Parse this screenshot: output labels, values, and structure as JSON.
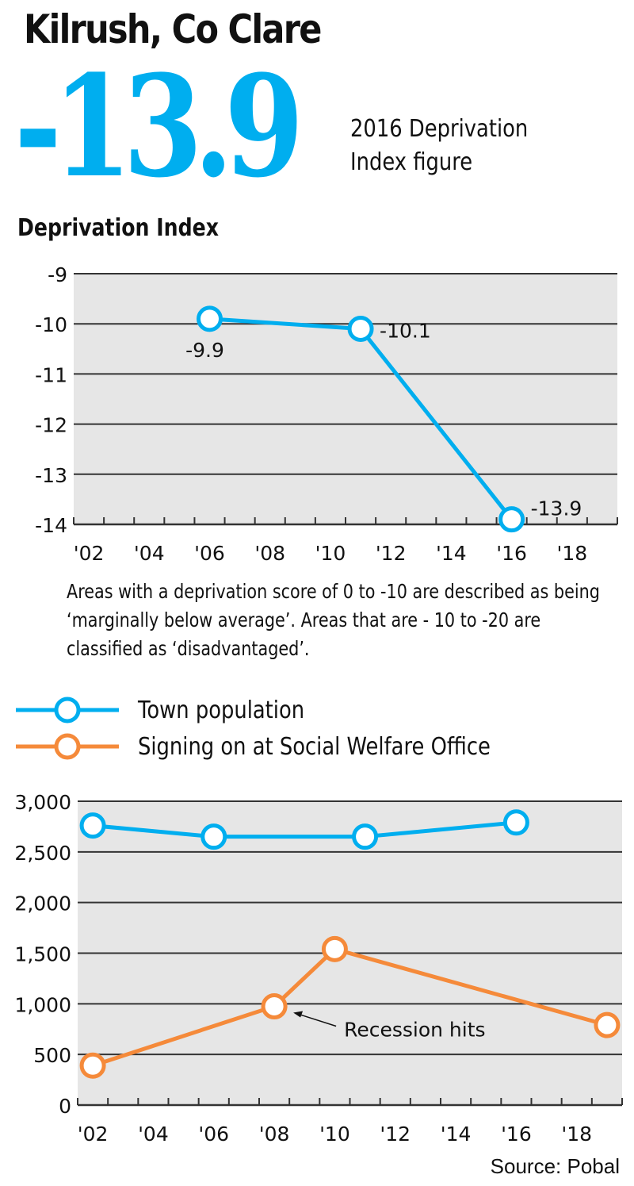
{
  "header": {
    "title": "Kilrush, Co Clare",
    "big_number": "-13.9",
    "big_number_caption_line1": "2016 Deprivation",
    "big_number_caption_line2": "Index figure"
  },
  "colors": {
    "accent_blue": "#00AEEF",
    "accent_orange": "#F58A3A",
    "plot_background": "#E6E6E6",
    "gridline": "#333333"
  },
  "chart_data": [
    {
      "type": "line",
      "title": "Deprivation Index",
      "xlabel": "",
      "ylabel": "",
      "x_range": [
        2002,
        2019
      ],
      "ylim": [
        -14,
        -9
      ],
      "y_ticks": [
        -9,
        -10,
        -11,
        -12,
        -13,
        -14
      ],
      "y_tick_labels": [
        "-9",
        "-10",
        "-11",
        "-12",
        "-13",
        "-14"
      ],
      "x_tick_labels": [
        "'02",
        "'04",
        "'06",
        "'08",
        "'10",
        "'12",
        "'14",
        "'16",
        "'18"
      ],
      "x_tick_years": [
        2002,
        2004,
        2006,
        2008,
        2010,
        2012,
        2014,
        2016,
        2018
      ],
      "grid": true,
      "series": [
        {
          "name": "Deprivation Index",
          "color": "#00AEEF",
          "x": [
            2006,
            2011,
            2016
          ],
          "values": [
            -9.9,
            -10.1,
            -13.9
          ],
          "data_labels": [
            "-9.9",
            "-10.1",
            "-13.9"
          ]
        }
      ],
      "note": "Areas with a deprivation score of 0 to -10 are described as being ‘marginally below average’. Areas that are - 10 to -20 are classified as ‘disadvantaged’."
    },
    {
      "type": "line",
      "title": "",
      "xlabel": "",
      "ylabel": "",
      "x_range": [
        2002,
        2019
      ],
      "ylim": [
        0,
        3000
      ],
      "y_ticks": [
        3000,
        2500,
        2000,
        1500,
        1000,
        500,
        0
      ],
      "y_tick_labels": [
        "3,000",
        "2,500",
        "2,000",
        "1,500",
        "1,000",
        "500",
        "0"
      ],
      "x_tick_labels": [
        "'02",
        "'04",
        "'06",
        "'08",
        "'10",
        "'12",
        "'14",
        "'16",
        "'18"
      ],
      "x_tick_years": [
        2002,
        2004,
        2006,
        2008,
        2010,
        2012,
        2014,
        2016,
        2018
      ],
      "grid": true,
      "legend_position": "top-left",
      "series": [
        {
          "name": "Town population",
          "color": "#00AEEF",
          "x": [
            2002,
            2006,
            2011,
            2016
          ],
          "values": [
            2760,
            2650,
            2650,
            2790
          ]
        },
        {
          "name": "Signing on at Social Welfare Office",
          "color": "#F58A3A",
          "x": [
            2002,
            2008,
            2010,
            2019
          ],
          "values": [
            390,
            975,
            1540,
            790
          ]
        }
      ],
      "annotations": [
        {
          "text": "Recession hits",
          "points_to": {
            "series": "Signing on at Social Welfare Office",
            "x": 2008
          }
        }
      ],
      "source": "Source: Pobal"
    }
  ]
}
